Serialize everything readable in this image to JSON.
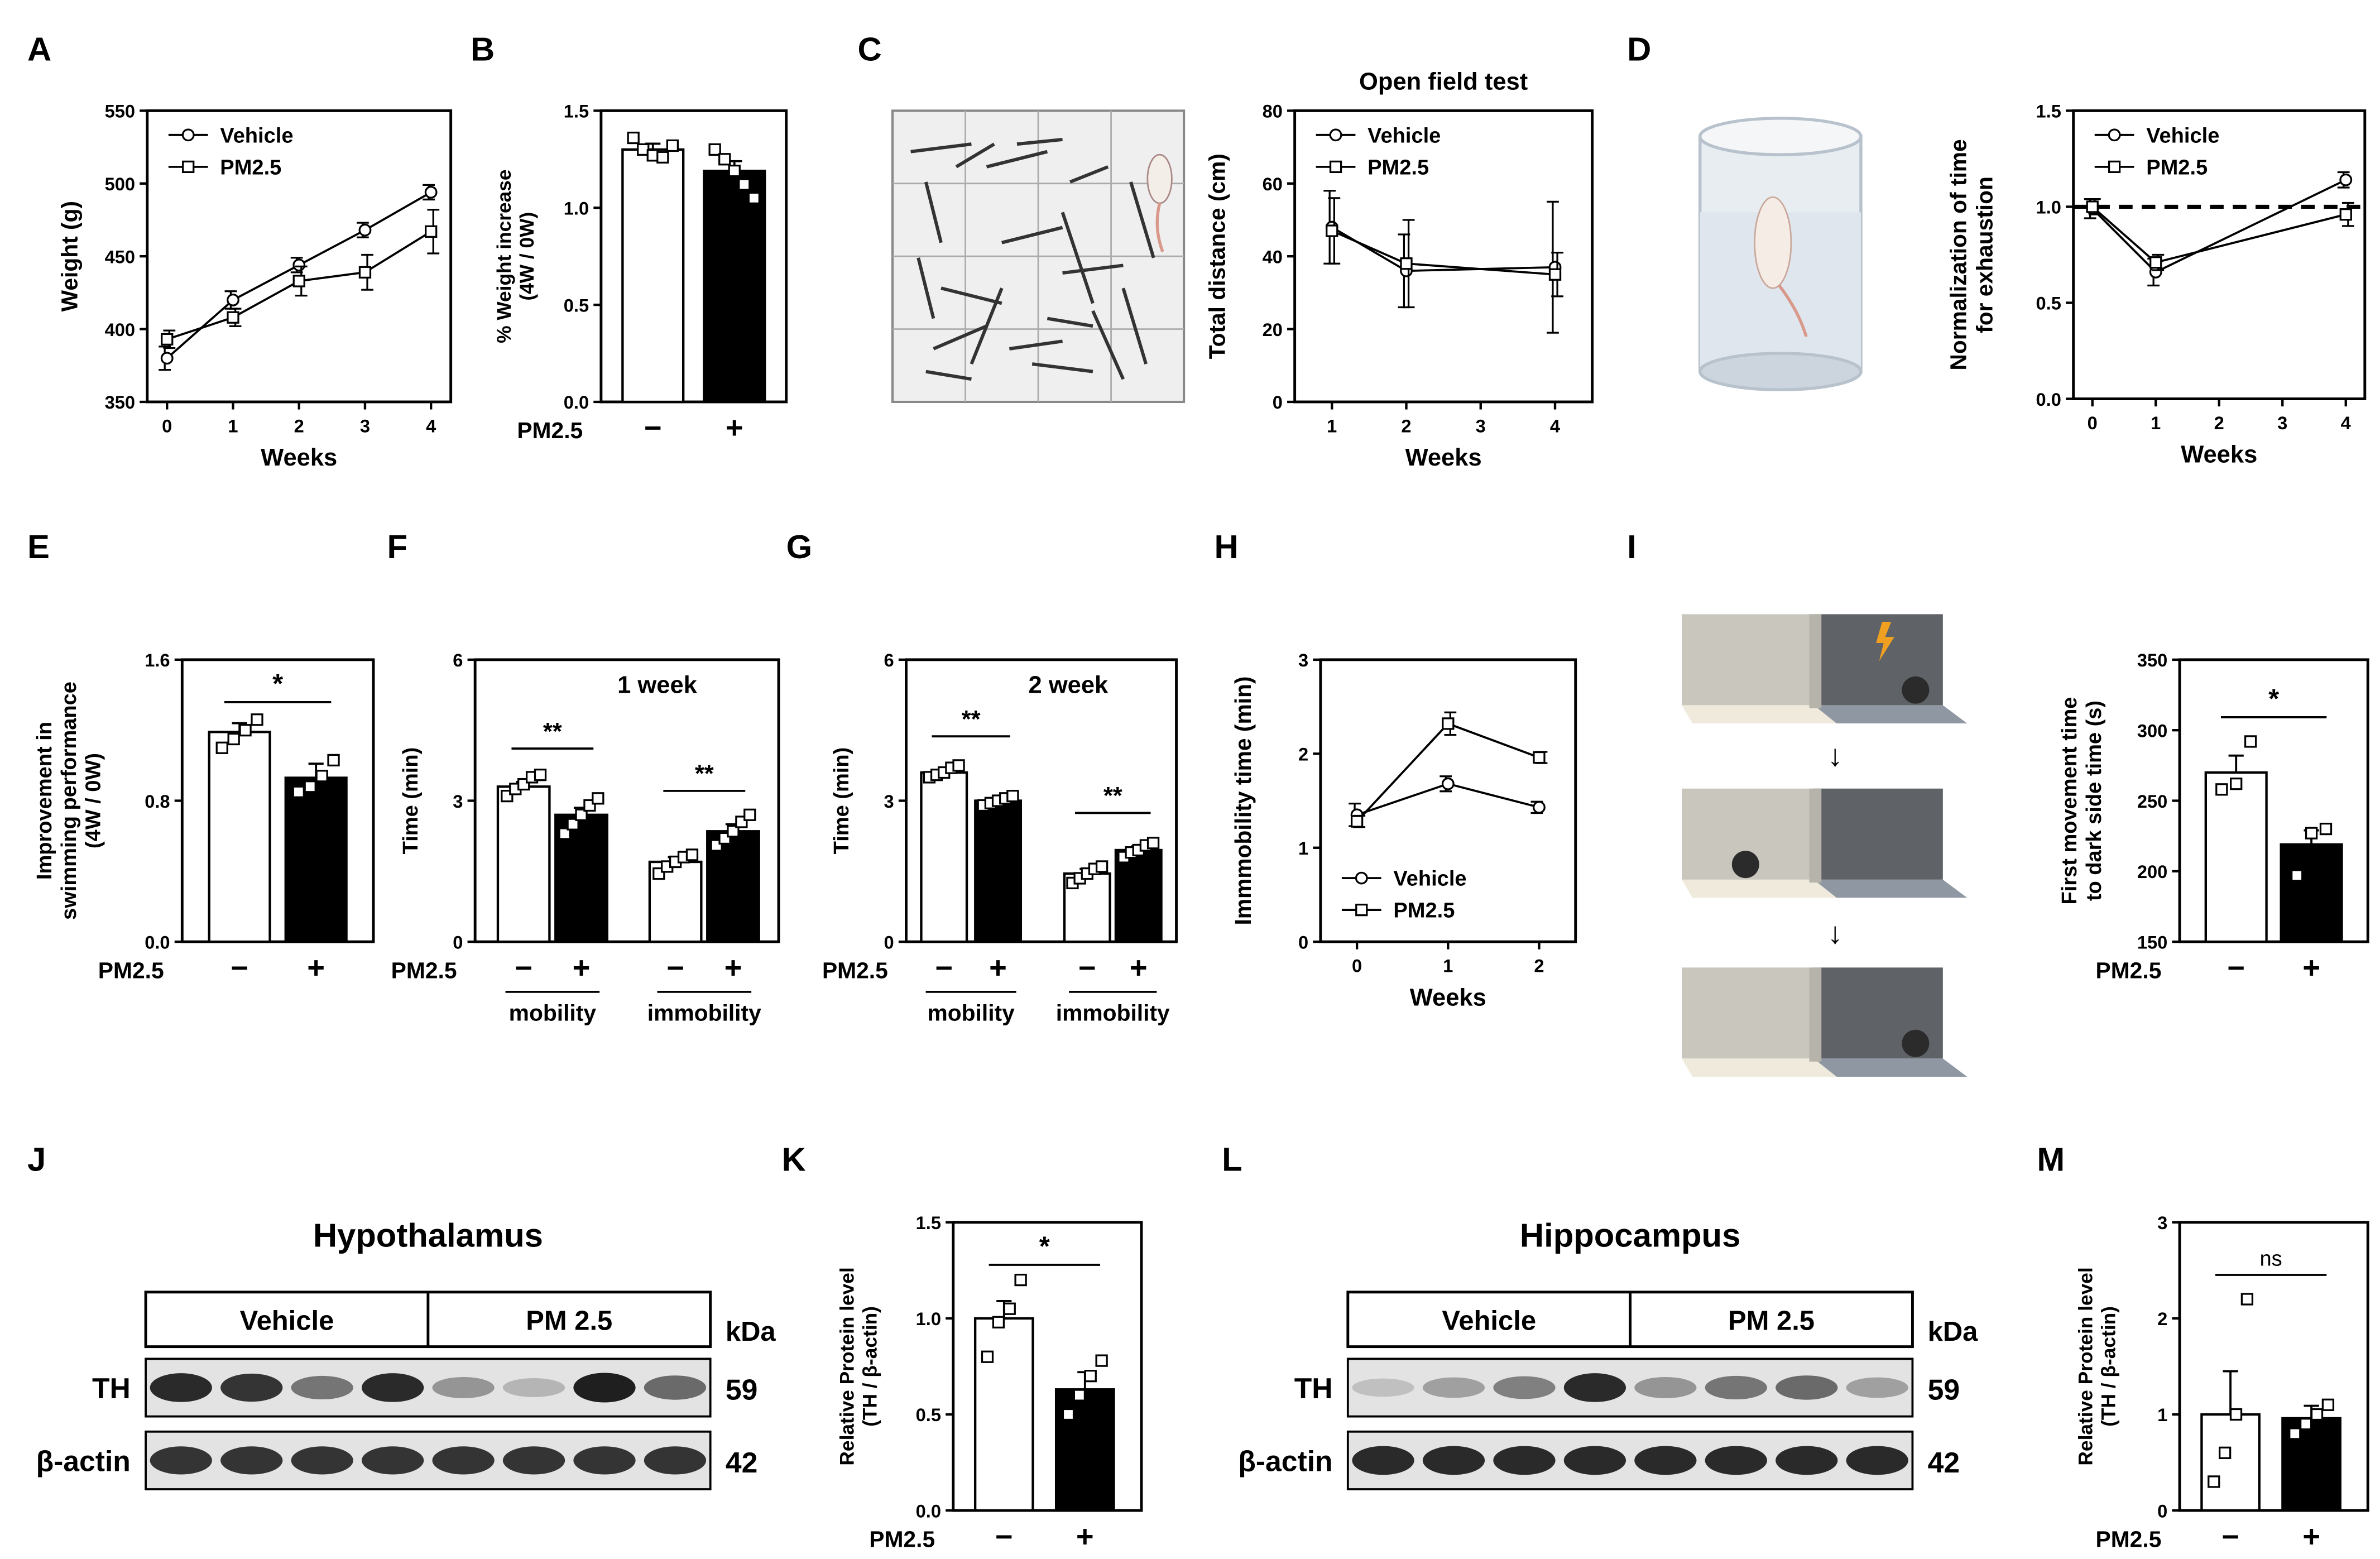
{
  "figure": {
    "panel_letters": [
      "A",
      "B",
      "C",
      "D",
      "E",
      "F",
      "G",
      "H",
      "I",
      "J",
      "K",
      "L",
      "M"
    ]
  },
  "chart_data": [
    {
      "id": "A",
      "type": "line",
      "x": [
        0,
        1,
        2,
        3,
        4
      ],
      "xlim": [
        -0.3,
        4.3
      ],
      "ylim": [
        350,
        550
      ],
      "xticks": [
        "0",
        "1",
        "2",
        "3",
        "4"
      ],
      "yticks": [
        350,
        400,
        450,
        500,
        550
      ],
      "xlabel": "Weeks",
      "ylabel": "Weight (g)",
      "legend": "top-left",
      "series": [
        {
          "name": "Vehicle",
          "marker": "circle",
          "values": [
            380,
            420,
            444,
            468,
            494
          ],
          "err": [
            8,
            6,
            5,
            5,
            5
          ]
        },
        {
          "name": "PM2.5",
          "marker": "square",
          "values": [
            393,
            408,
            433,
            439,
            467
          ],
          "err": [
            6,
            6,
            10,
            12,
            15
          ]
        }
      ]
    },
    {
      "id": "B",
      "type": "bar",
      "ylabel": "% Weight increase\n(4W / 0W)",
      "ylim": [
        0,
        1.5
      ],
      "yticks": [
        "0.0",
        "0.5",
        "1.0",
        "1.5"
      ],
      "group_label": "PM2.5",
      "categories": [
        "−",
        "+"
      ],
      "values": [
        1.3,
        1.19
      ],
      "err": [
        0.03,
        0.05
      ],
      "fills": [
        "#ffffff",
        "#000000"
      ],
      "points": [
        [
          1.36,
          1.3,
          1.27,
          1.26,
          1.32
        ],
        [
          1.3,
          1.25,
          1.19,
          1.12,
          1.05
        ]
      ]
    },
    {
      "id": "C",
      "type": "line",
      "title": "Open field test",
      "x": [
        1,
        2,
        3,
        4
      ],
      "xlim": [
        0.5,
        4.5
      ],
      "ylim": [
        0,
        80
      ],
      "xticks": [
        "1",
        "2",
        "3",
        "4"
      ],
      "yticks": [
        0,
        20,
        40,
        60,
        80
      ],
      "xlabel": "Weeks",
      "ylabel": "Total distance (cm)",
      "legend": "top-left",
      "series": [
        {
          "name": "Vehicle",
          "marker": "circle",
          "values": [
            48,
            36,
            null,
            37
          ],
          "err": [
            10,
            10,
            null,
            18
          ]
        },
        {
          "name": "PM2.5",
          "marker": "square",
          "values": [
            47,
            38,
            null,
            35
          ],
          "err": [
            9,
            12,
            null,
            6
          ]
        }
      ]
    },
    {
      "id": "D",
      "type": "line",
      "x": [
        0,
        1,
        2,
        3,
        4
      ],
      "xlim": [
        -0.3,
        4.3
      ],
      "ylim": [
        0,
        1.5
      ],
      "xticks": [
        "0",
        "1",
        "2",
        "3",
        "4"
      ],
      "yticks": [
        "0.0",
        "0.5",
        "1.0",
        "1.5"
      ],
      "xlabel": "Weeks",
      "ylabel": "Normalization of time\nfor exhaustion",
      "reference_line": 1.0,
      "legend": "top-left",
      "series": [
        {
          "name": "Vehicle",
          "marker": "circle",
          "values": [
            0.99,
            0.66,
            null,
            null,
            1.14
          ],
          "err": [
            0.05,
            0.07,
            null,
            null,
            0.04
          ]
        },
        {
          "name": "PM2.5",
          "marker": "square",
          "values": [
            1.0,
            0.71,
            null,
            null,
            0.96
          ],
          "err": [
            0.04,
            0.04,
            null,
            null,
            0.06
          ]
        }
      ]
    },
    {
      "id": "E",
      "type": "bar",
      "ylabel": "Improvement in\nswimming performance\n(4W / 0W)",
      "ylim": [
        0,
        1.6
      ],
      "yticks": [
        "0.0",
        "0.8",
        "1.6"
      ],
      "group_label": "PM2.5",
      "categories": [
        "−",
        "+"
      ],
      "values": [
        1.19,
        0.93
      ],
      "err": [
        0.05,
        0.08
      ],
      "fills": [
        "#ffffff",
        "#000000"
      ],
      "points": [
        [
          1.1,
          1.15,
          1.2,
          1.26
        ],
        [
          0.85,
          0.88,
          0.94,
          1.03
        ]
      ],
      "significance": "*"
    },
    {
      "id": "F",
      "type": "bar",
      "title": "1 week",
      "ylabel": "Time (min)",
      "ylim": [
        0,
        6
      ],
      "yticks": [
        "0",
        "3",
        "6"
      ],
      "group_label": "PM2.5",
      "categories": [
        "−",
        "+",
        "−",
        "+"
      ],
      "groups": [
        "mobility",
        "immobility"
      ],
      "values": [
        3.3,
        2.7,
        1.7,
        2.35
      ],
      "err": [
        0.1,
        0.15,
        0.1,
        0.15
      ],
      "fills": [
        "#ffffff",
        "#000000",
        "#ffffff",
        "#000000"
      ],
      "points": [
        [
          3.1,
          3.25,
          3.35,
          3.5,
          3.55
        ],
        [
          2.3,
          2.5,
          2.7,
          2.9,
          3.05
        ],
        [
          1.45,
          1.6,
          1.7,
          1.8,
          1.85
        ],
        [
          2.05,
          2.2,
          2.35,
          2.55,
          2.7
        ]
      ],
      "significance": [
        "**",
        "**"
      ]
    },
    {
      "id": "G",
      "type": "bar",
      "title": "2 week",
      "ylabel": "Time (min)",
      "ylim": [
        0,
        6
      ],
      "yticks": [
        "0",
        "3",
        "6"
      ],
      "group_label": "PM2.5",
      "categories": [
        "−",
        "+",
        "−",
        "+"
      ],
      "groups": [
        "mobility",
        "immobility"
      ],
      "values": [
        3.6,
        3.0,
        1.45,
        1.95
      ],
      "err": [
        0.06,
        0.06,
        0.1,
        0.08
      ],
      "fills": [
        "#ffffff",
        "#000000",
        "#ffffff",
        "#000000"
      ],
      "points": [
        [
          3.5,
          3.55,
          3.6,
          3.7,
          3.75
        ],
        [
          2.9,
          2.95,
          3.0,
          3.05,
          3.1
        ],
        [
          1.25,
          1.35,
          1.45,
          1.55,
          1.6
        ],
        [
          1.8,
          1.9,
          1.95,
          2.05,
          2.1
        ]
      ],
      "significance": [
        "**",
        "**"
      ]
    },
    {
      "id": "H",
      "type": "line",
      "x": [
        0,
        1,
        2
      ],
      "xlim": [
        -0.4,
        2.4
      ],
      "ylim": [
        0,
        3
      ],
      "xticks": [
        "0",
        "1",
        "2"
      ],
      "yticks": [
        "0",
        "1",
        "2",
        "3"
      ],
      "xlabel": "Weeks",
      "ylabel": "Immmobility time (min)",
      "legend": "bottom-left",
      "series": [
        {
          "name": "Vehicle",
          "marker": "circle",
          "values": [
            1.35,
            1.68,
            1.43
          ],
          "err": [
            0.12,
            0.08,
            0.06
          ]
        },
        {
          "name": "PM2.5",
          "marker": "square",
          "values": [
            1.28,
            2.32,
            1.96
          ],
          "err": [
            0.06,
            0.12,
            0.06
          ]
        }
      ]
    },
    {
      "id": "I",
      "type": "bar",
      "ylabel": "First movement time\nto dark side time (s)",
      "ylim": [
        150,
        350
      ],
      "yticks": [
        "150",
        "200",
        "250",
        "300",
        "350"
      ],
      "group_label": "PM2.5",
      "categories": [
        "−",
        "+"
      ],
      "values": [
        270,
        219
      ],
      "err": [
        12,
        10
      ],
      "fills": [
        "#ffffff",
        "#000000"
      ],
      "points": [
        [
          258,
          262,
          292
        ],
        [
          197,
          227,
          230
        ]
      ],
      "significance": "*"
    },
    {
      "id": "K",
      "type": "bar",
      "ylabel": "Relative Protein level\n(TH / β-actin)",
      "ylim": [
        0,
        1.5
      ],
      "yticks": [
        "0.0",
        "0.5",
        "1.0",
        "1.5"
      ],
      "group_label": "PM2.5",
      "categories": [
        "−",
        "+"
      ],
      "values": [
        1.0,
        0.63
      ],
      "err": [
        0.09,
        0.09
      ],
      "fills": [
        "#ffffff",
        "#000000"
      ],
      "points": [
        [
          0.8,
          0.98,
          1.05,
          1.2
        ],
        [
          0.5,
          0.6,
          0.7,
          0.78
        ]
      ],
      "significance": "*"
    },
    {
      "id": "M",
      "type": "bar",
      "ylabel": "Relative Protein level\n(TH / β-actin)",
      "ylim": [
        0,
        3
      ],
      "yticks": [
        "0",
        "1",
        "2",
        "3"
      ],
      "group_label": "PM2.5",
      "categories": [
        "−",
        "+"
      ],
      "values": [
        1.0,
        0.96
      ],
      "err": [
        0.45,
        0.13
      ],
      "fills": [
        "#ffffff",
        "#000000"
      ],
      "points": [
        [
          0.3,
          0.6,
          1.0,
          2.2
        ],
        [
          0.8,
          0.9,
          1.0,
          1.1
        ]
      ],
      "significance": "ns"
    }
  ],
  "blots": {
    "J": {
      "title": "Hypothalamus",
      "groups": [
        "Vehicle",
        "PM 2.5"
      ],
      "unit": "kDa",
      "rows": [
        {
          "label": "TH",
          "kda": "59",
          "intensities": [
            0.9,
            0.85,
            0.55,
            0.9,
            0.4,
            0.25,
            0.95,
            0.6
          ]
        },
        {
          "label": "β-actin",
          "kda": "42",
          "intensities": [
            0.85,
            0.85,
            0.85,
            0.85,
            0.85,
            0.85,
            0.85,
            0.85
          ]
        }
      ]
    },
    "L": {
      "title": "Hippocampus",
      "groups": [
        "Vehicle",
        "PM 2.5"
      ],
      "unit": "kDa",
      "rows": [
        {
          "label": "TH",
          "kda": "59",
          "intensities": [
            0.2,
            0.35,
            0.5,
            0.9,
            0.4,
            0.55,
            0.6,
            0.35
          ]
        },
        {
          "label": "β-actin",
          "kda": "42",
          "intensities": [
            0.9,
            0.9,
            0.9,
            0.9,
            0.9,
            0.9,
            0.9,
            0.9
          ]
        }
      ]
    }
  },
  "illustrations": {
    "I_arrow": "↓"
  }
}
